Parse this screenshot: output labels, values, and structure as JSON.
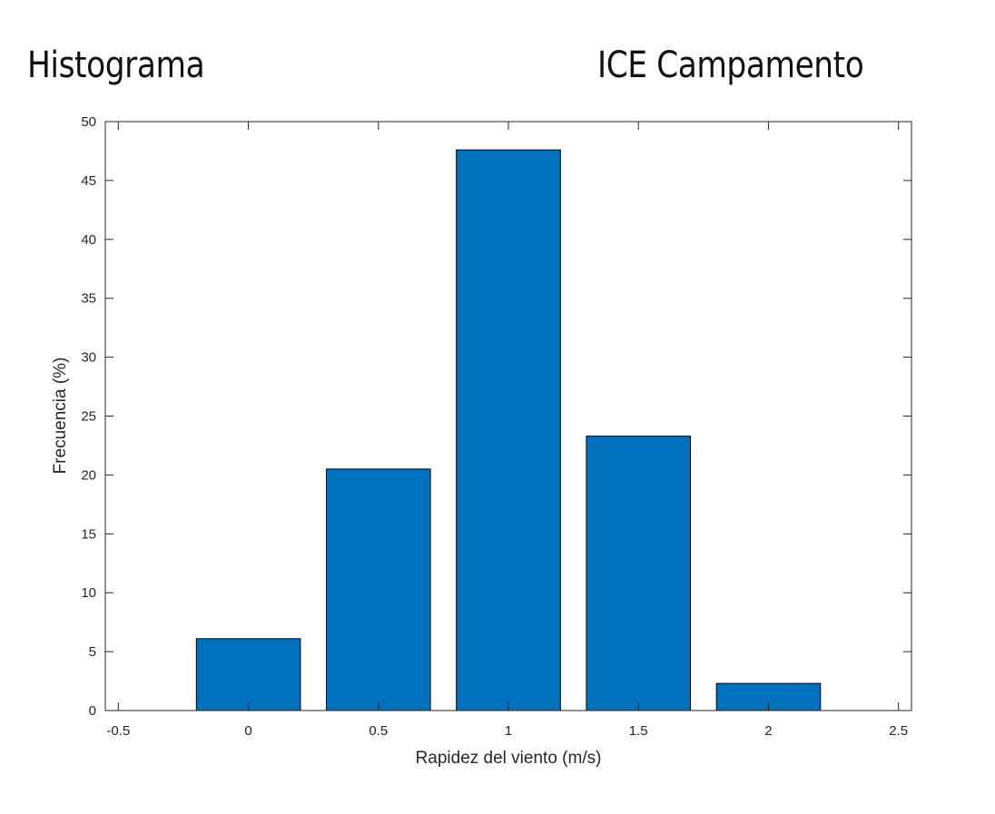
{
  "header": {
    "left_title": "Histograma",
    "right_title": "ICE Campamento"
  },
  "chart_data": {
    "type": "bar",
    "title": "",
    "xlabel": "Rapidez del viento (m/s)",
    "ylabel": "Frecuencia (%)",
    "x": [
      0,
      0.5,
      1,
      1.5,
      2
    ],
    "values": [
      6.1,
      20.5,
      47.6,
      23.3,
      2.3
    ],
    "bar_width": 0.4,
    "xlim": [
      -0.55,
      2.55
    ],
    "ylim": [
      0,
      50
    ],
    "xticks": [
      -0.5,
      0,
      0.5,
      1,
      1.5,
      2,
      2.5
    ],
    "xtick_labels": [
      "-0.5",
      "0",
      "0.5",
      "1",
      "1.5",
      "2",
      "2.5"
    ],
    "yticks": [
      0,
      5,
      10,
      15,
      20,
      25,
      30,
      35,
      40,
      45,
      50
    ],
    "ytick_labels": [
      "0",
      "5",
      "10",
      "15",
      "20",
      "25",
      "30",
      "35",
      "40",
      "45",
      "50"
    ],
    "grid": false,
    "bar_color": "#0072bd",
    "edge_color": "#000000"
  }
}
